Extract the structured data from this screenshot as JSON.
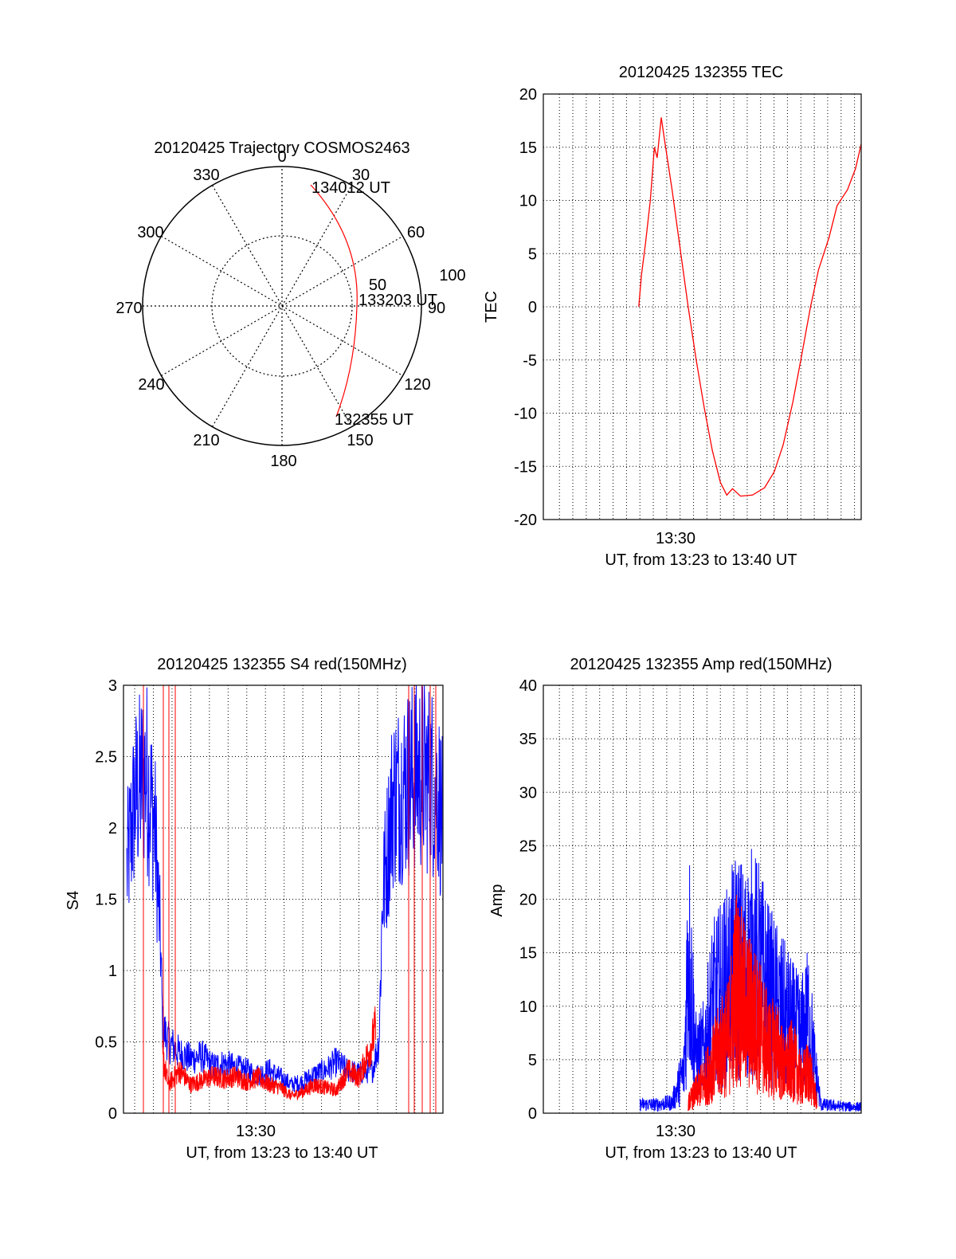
{
  "colors": {
    "red": "#ff0000",
    "blue": "#0000ff",
    "axis": "#000000",
    "grid": "#000000"
  },
  "chart_data": [
    {
      "type": "polar",
      "title": "20120425 Trajectory COSMOS2463",
      "angle_labels": [
        "0",
        "30",
        "60",
        "90",
        "120",
        "150",
        "180",
        "210",
        "240",
        "270",
        "300",
        "330"
      ],
      "radius_labels": [
        "50",
        "100"
      ],
      "track_points": [
        {
          "label": "134012 UT",
          "azimuth": 19,
          "radius": 88
        },
        {
          "label": "133203 UT",
          "azimuth": 86,
          "radius": 53
        },
        {
          "label": "132355 UT",
          "azimuth": 140,
          "radius": 94
        }
      ],
      "grid": true
    },
    {
      "type": "line",
      "title": "20120425 132355 TEC",
      "ylabel": "TEC",
      "xlabel": "UT, from 13:23 to 13:40 UT",
      "x_tick_label": "13:30",
      "x_tick_value": 13.5,
      "xlim": [
        13.28,
        13.675
      ],
      "ylim": [
        -20,
        20
      ],
      "yticks": [
        "20",
        "15",
        "10",
        "5",
        "0",
        "-5",
        "-10",
        "-15",
        "-20"
      ],
      "grid": true,
      "series": [
        {
          "color": "red",
          "points": [
            [
              13.3986,
              0
            ],
            [
              13.402,
              3
            ],
            [
              13.407,
              6
            ],
            [
              13.413,
              10
            ],
            [
              13.418,
              15
            ],
            [
              13.4215,
              14
            ],
            [
              13.4265,
              17.8
            ],
            [
              13.43,
              16
            ],
            [
              13.44,
              11
            ],
            [
              13.45,
              5.5
            ],
            [
              13.46,
              0
            ],
            [
              13.47,
              -5
            ],
            [
              13.48,
              -9.5
            ],
            [
              13.49,
              -13.5
            ],
            [
              13.5,
              -16.5
            ],
            [
              13.508,
              -17.7
            ],
            [
              13.515,
              -17.1
            ],
            [
              13.525,
              -17.8
            ],
            [
              13.54,
              -17.7
            ],
            [
              13.555,
              -17
            ],
            [
              13.567,
              -15.5
            ],
            [
              13.578,
              -13
            ],
            [
              13.59,
              -9
            ],
            [
              13.6,
              -5
            ],
            [
              13.612,
              0
            ],
            [
              13.622,
              3.5
            ],
            [
              13.635,
              6.5
            ],
            [
              13.645,
              9.5
            ],
            [
              13.658,
              11
            ],
            [
              13.668,
              13
            ],
            [
              13.675,
              15.3
            ]
          ]
        }
      ]
    },
    {
      "type": "line",
      "title": "20120425 132355 S4 red(150MHz)",
      "ylabel": "S4",
      "xlabel": "UT, from 13:23 to 13:40 UT",
      "x_tick_label": "13:30",
      "x_tick_value": 13.5,
      "xlim": [
        13.39,
        13.675
      ],
      "ylim": [
        0,
        3
      ],
      "yticks": [
        "3",
        "2.5",
        "2",
        "1.5",
        "1",
        "0.5",
        "0"
      ],
      "grid": true,
      "series": [
        {
          "color": "blue",
          "points": [
            [
              13.393,
              1.7
            ],
            [
              13.4,
              2.2
            ],
            [
              13.41,
              2.4
            ],
            [
              13.418,
              2.0
            ],
            [
              13.423,
              1.2
            ],
            [
              13.425,
              0.6
            ],
            [
              13.43,
              0.5
            ],
            [
              13.44,
              0.42
            ],
            [
              13.45,
              0.38
            ],
            [
              13.46,
              0.4
            ],
            [
              13.47,
              0.33
            ],
            [
              13.48,
              0.35
            ],
            [
              13.49,
              0.32
            ],
            [
              13.5,
              0.3
            ],
            [
              13.51,
              0.27
            ],
            [
              13.52,
              0.3
            ],
            [
              13.53,
              0.25
            ],
            [
              13.54,
              0.2
            ],
            [
              13.55,
              0.22
            ],
            [
              13.56,
              0.27
            ],
            [
              13.57,
              0.3
            ],
            [
              13.58,
              0.36
            ],
            [
              13.59,
              0.3
            ],
            [
              13.6,
              0.28
            ],
            [
              13.612,
              0.3
            ],
            [
              13.618,
              0.5
            ],
            [
              13.621,
              1.5
            ],
            [
              13.63,
              2.2
            ],
            [
              13.64,
              2.3
            ],
            [
              13.655,
              2.4
            ],
            [
              13.67,
              2.3
            ],
            [
              13.675,
              2.0
            ]
          ]
        },
        {
          "color": "red",
          "points": [
            [
              13.425,
              0.4
            ],
            [
              13.43,
              0.2
            ],
            [
              13.44,
              0.3
            ],
            [
              13.45,
              0.2
            ],
            [
              13.46,
              0.23
            ],
            [
              13.47,
              0.26
            ],
            [
              13.48,
              0.24
            ],
            [
              13.49,
              0.26
            ],
            [
              13.5,
              0.22
            ],
            [
              13.51,
              0.25
            ],
            [
              13.52,
              0.2
            ],
            [
              13.53,
              0.18
            ],
            [
              13.54,
              0.12
            ],
            [
              13.55,
              0.15
            ],
            [
              13.56,
              0.2
            ],
            [
              13.57,
              0.18
            ],
            [
              13.58,
              0.16
            ],
            [
              13.59,
              0.3
            ],
            [
              13.6,
              0.25
            ],
            [
              13.61,
              0.45
            ],
            [
              13.615,
              0.6
            ]
          ]
        }
      ]
    },
    {
      "type": "line",
      "title": "20120425 132355 Amp red(150MHz)",
      "ylabel": "Amp",
      "xlabel": "UT, from 13:23 to 13:40 UT",
      "x_tick_label": "13:30",
      "x_tick_value": 13.5,
      "xlim": [
        13.28,
        13.675
      ],
      "ylim": [
        0,
        40
      ],
      "yticks": [
        "40",
        "35",
        "30",
        "25",
        "20",
        "15",
        "10",
        "5",
        "0"
      ],
      "grid": true,
      "series": [
        {
          "color": "blue",
          "points": [
            [
              13.4,
              0.8
            ],
            [
              13.42,
              0.8
            ],
            [
              13.44,
              1
            ],
            [
              13.455,
              4
            ],
            [
              13.46,
              16
            ],
            [
              13.47,
              5
            ],
            [
              13.48,
              6
            ],
            [
              13.49,
              10
            ],
            [
              13.5,
              11
            ],
            [
              13.51,
              12
            ],
            [
              13.52,
              14
            ],
            [
              13.53,
              13
            ],
            [
              13.54,
              14
            ],
            [
              13.55,
              13
            ],
            [
              13.56,
              11
            ],
            [
              13.57,
              10
            ],
            [
              13.58,
              9
            ],
            [
              13.59,
              8
            ],
            [
              13.6,
              7
            ],
            [
              13.61,
              9
            ],
            [
              13.618,
              4
            ],
            [
              13.625,
              0.8
            ],
            [
              13.64,
              0.7
            ],
            [
              13.66,
              0.6
            ],
            [
              13.675,
              0.6
            ]
          ]
        },
        {
          "color": "red",
          "points": [
            [
              13.46,
              1
            ],
            [
              13.48,
              3
            ],
            [
              13.5,
              6
            ],
            [
              13.51,
              7
            ],
            [
              13.52,
              12
            ],
            [
              13.53,
              10
            ],
            [
              13.54,
              9
            ],
            [
              13.55,
              8
            ],
            [
              13.56,
              6
            ],
            [
              13.57,
              6
            ],
            [
              13.58,
              4
            ],
            [
              13.59,
              5
            ],
            [
              13.6,
              3
            ],
            [
              13.61,
              4
            ],
            [
              13.62,
              1
            ]
          ]
        }
      ]
    }
  ]
}
